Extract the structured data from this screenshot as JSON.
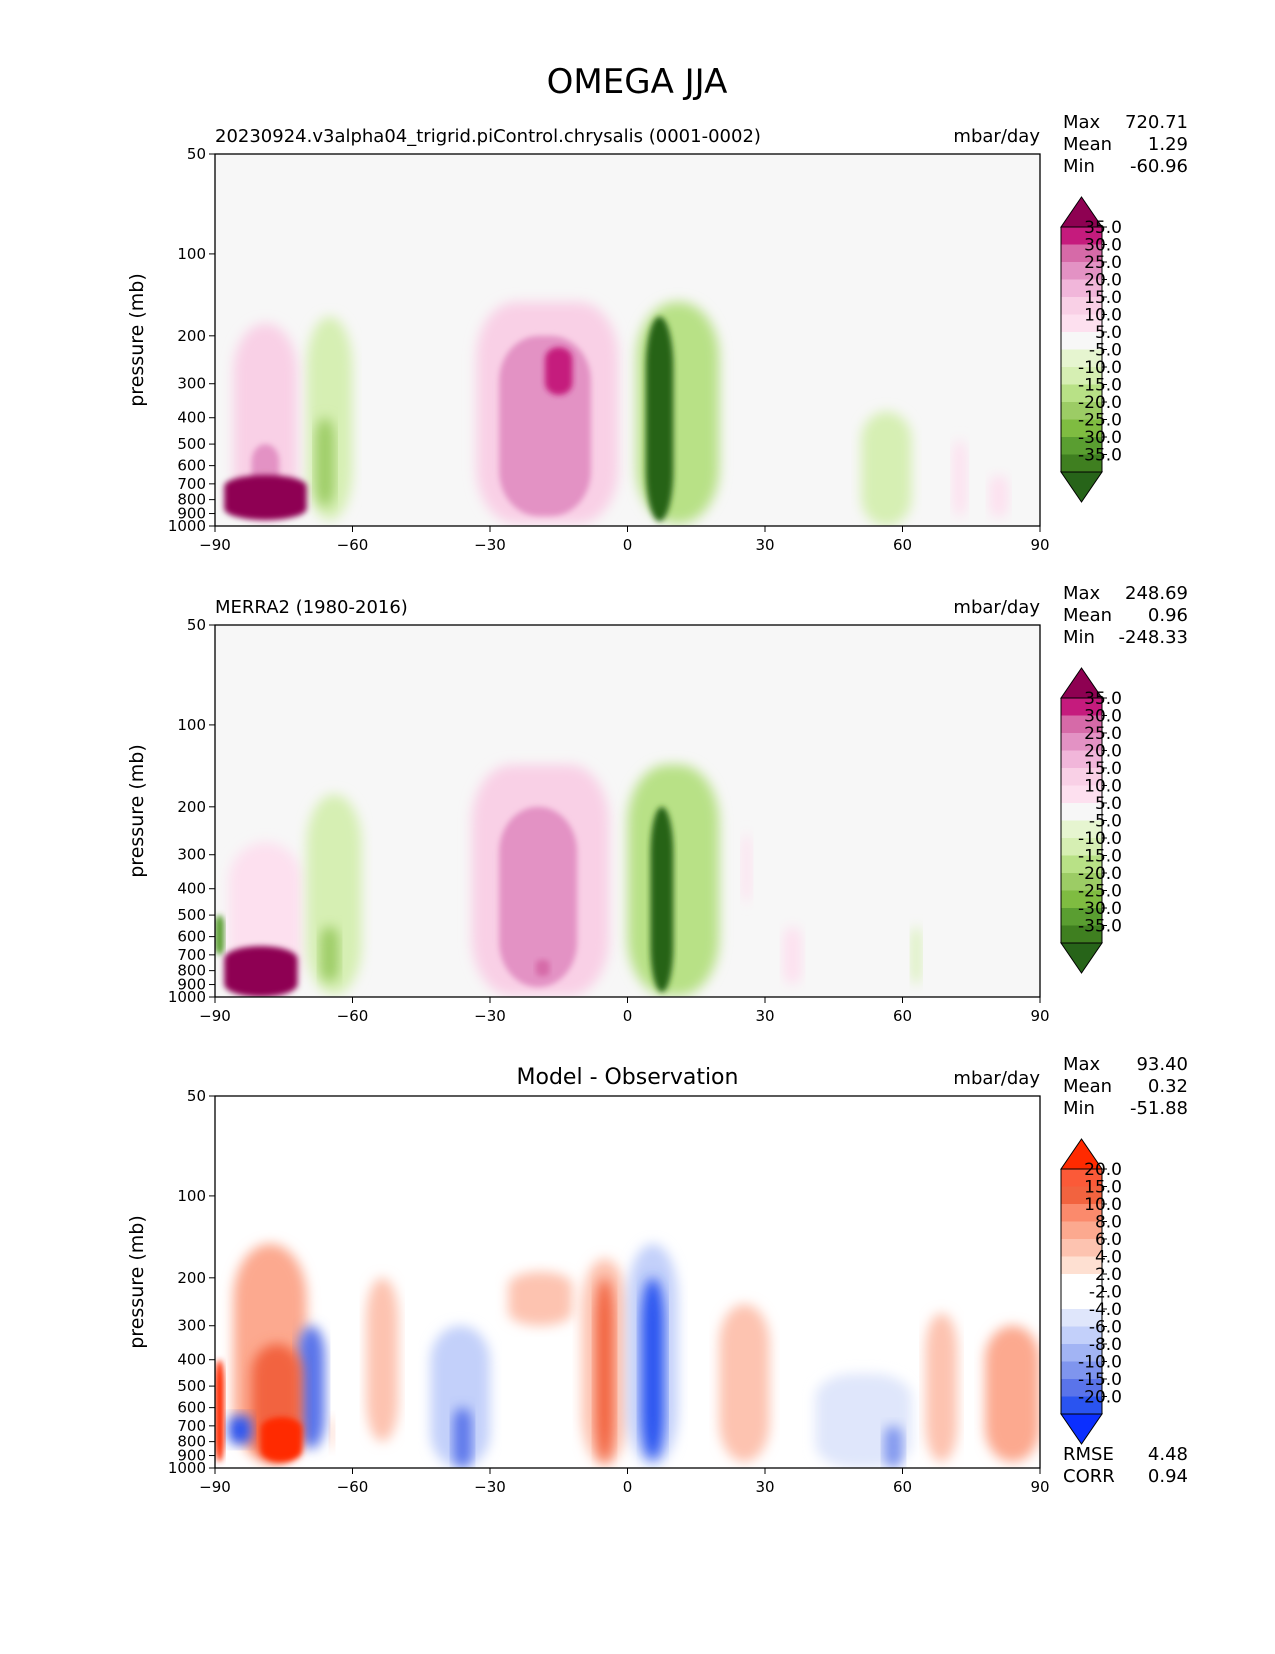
{
  "figure_title": "OMEGA JJA",
  "x_ticks": [
    "−90",
    "−60",
    "−30",
    "0",
    "30",
    "60",
    "90"
  ],
  "y_ticks": [
    "50",
    "100",
    "200",
    "300",
    "400",
    "500",
    "600",
    "700",
    "800",
    "900",
    "1000"
  ],
  "ylabel": "pressure (mb)",
  "colors": {
    "pink_scale": [
      "#f7f7f7",
      "#fde0ef",
      "#f9d0e6",
      "#f1b6da",
      "#e392c4",
      "#d66aa8",
      "#c51b7d",
      "#8e0152"
    ],
    "green_scale": [
      "#f7f7f7",
      "#e6f5d0",
      "#d6efb3",
      "#b8e186",
      "#9ccc65",
      "#7fbc41",
      "#5a9e31",
      "#3f7f20",
      "#276419"
    ],
    "diff_pos": [
      "#ffffff",
      "#fee0d2",
      "#fdc3b0",
      "#fca98f",
      "#fb8a6c",
      "#f2633f",
      "#ff2a00"
    ],
    "diff_neg": [
      "#ffffff",
      "#dfe6fb",
      "#c3d0fa",
      "#a2b4f4",
      "#7f95ee",
      "#5a74ea",
      "#2a54f0",
      "#0b2fff"
    ]
  },
  "panels": [
    {
      "id": "model",
      "title_left": "20230924.v3alpha04_trigrid.piControl.chrysalis (0001-0002)",
      "title_center": "",
      "units": "mbar/day",
      "stats": [
        {
          "label": "Max",
          "value": "720.71"
        },
        {
          "label": "Mean",
          "value": "1.29"
        },
        {
          "label": "Min",
          "value": "-60.96"
        }
      ],
      "colorbar_ticks": [
        "35.0",
        "30.0",
        "25.0",
        "20.0",
        "15.0",
        "10.0",
        "5.0",
        "-5.0",
        "-10.0",
        "-15.0",
        "-20.0",
        "-25.0",
        "-30.0",
        "-35.0"
      ],
      "extra_stats": []
    },
    {
      "id": "obs",
      "title_left": "MERRA2 (1980-2016)",
      "title_center": "",
      "units": "mbar/day",
      "stats": [
        {
          "label": "Max",
          "value": "248.69"
        },
        {
          "label": "Mean",
          "value": "0.96"
        },
        {
          "label": "Min",
          "value": "-248.33"
        }
      ],
      "colorbar_ticks": [
        "35.0",
        "30.0",
        "25.0",
        "20.0",
        "15.0",
        "10.0",
        "5.0",
        "-5.0",
        "-10.0",
        "-15.0",
        "-20.0",
        "-25.0",
        "-30.0",
        "-35.0"
      ],
      "extra_stats": []
    },
    {
      "id": "diff",
      "title_left": "",
      "title_center": "Model - Observation",
      "units": "mbar/day",
      "stats": [
        {
          "label": "Max",
          "value": "93.40"
        },
        {
          "label": "Mean",
          "value": "0.32"
        },
        {
          "label": "Min",
          "value": "-51.88"
        }
      ],
      "colorbar_ticks": [
        "20.0",
        "15.0",
        "10.0",
        "8.0",
        "6.0",
        "4.0",
        "2.0",
        "-2.0",
        "-4.0",
        "-6.0",
        "-8.0",
        "-10.0",
        "-15.0",
        "-20.0"
      ],
      "extra_stats": [
        {
          "label": "RMSE",
          "value": "4.48"
        },
        {
          "label": "CORR",
          "value": "0.94"
        }
      ]
    }
  ],
  "chart_data": [
    {
      "type": "heatmap",
      "title": "20230924.v3alpha04_trigrid.piControl.chrysalis (0001-0002)",
      "xlabel": "",
      "ylabel": "pressure (mb)",
      "xlim": [
        -90,
        90
      ],
      "ylim": [
        1000,
        50
      ],
      "units": "mbar/day",
      "features": [
        {
          "lat_range": [
            -88,
            -70
          ],
          "p_range": [
            650,
            950
          ],
          "value": 40
        },
        {
          "lat_range": [
            -86,
            -72
          ],
          "p_range": [
            180,
            950
          ],
          "value": 10
        },
        {
          "lat_range": [
            -82,
            -76
          ],
          "p_range": [
            500,
            900
          ],
          "value": 20
        },
        {
          "lat_range": [
            -70,
            -60
          ],
          "p_range": [
            170,
            950
          ],
          "value": -8
        },
        {
          "lat_range": [
            -68,
            -64
          ],
          "p_range": [
            400,
            850
          ],
          "value": -18
        },
        {
          "lat_range": [
            -33,
            -2
          ],
          "p_range": [
            150,
            980
          ],
          "value": 10
        },
        {
          "lat_range": [
            -28,
            -8
          ],
          "p_range": [
            200,
            920
          ],
          "value": 20
        },
        {
          "lat_range": [
            -18,
            -12
          ],
          "p_range": [
            220,
            330
          ],
          "value": 30
        },
        {
          "lat_range": [
            2,
            20
          ],
          "p_range": [
            150,
            980
          ],
          "value": -10
        },
        {
          "lat_range": [
            4,
            10
          ],
          "p_range": [
            170,
            960
          ],
          "value": -35
        },
        {
          "lat_range": [
            51,
            62
          ],
          "p_range": [
            380,
            1000
          ],
          "value": -6
        },
        {
          "lat_range": [
            71,
            74
          ],
          "p_range": [
            480,
            930
          ],
          "value": 6
        },
        {
          "lat_range": [
            79,
            83
          ],
          "p_range": [
            650,
            930
          ],
          "value": 6
        }
      ]
    },
    {
      "type": "heatmap",
      "title": "MERRA2 (1980-2016)",
      "xlabel": "",
      "ylabel": "pressure (mb)",
      "xlim": [
        -90,
        90
      ],
      "ylim": [
        1000,
        50
      ],
      "units": "mbar/day",
      "features": [
        {
          "lat_range": [
            -90,
            -88
          ],
          "p_range": [
            500,
            700
          ],
          "value": -25
        },
        {
          "lat_range": [
            -88,
            -72
          ],
          "p_range": [
            650,
            1000
          ],
          "value": 40
        },
        {
          "lat_range": [
            -87,
            -71
          ],
          "p_range": [
            270,
            1000
          ],
          "value": 8
        },
        {
          "lat_range": [
            -70,
            -58
          ],
          "p_range": [
            180,
            980
          ],
          "value": -8
        },
        {
          "lat_range": [
            -67,
            -63
          ],
          "p_range": [
            550,
            880
          ],
          "value": -18
        },
        {
          "lat_range": [
            -34,
            -4
          ],
          "p_range": [
            140,
            990
          ],
          "value": 10
        },
        {
          "lat_range": [
            -28,
            -11
          ],
          "p_range": [
            200,
            920
          ],
          "value": 20
        },
        {
          "lat_range": [
            -20,
            -17
          ],
          "p_range": [
            730,
            840
          ],
          "value": 28
        },
        {
          "lat_range": [
            0,
            20
          ],
          "p_range": [
            140,
            990
          ],
          "value": -10
        },
        {
          "lat_range": [
            5,
            10
          ],
          "p_range": [
            200,
            960
          ],
          "value": -35
        },
        {
          "lat_range": [
            25,
            27
          ],
          "p_range": [
            250,
            450
          ],
          "value": 6
        },
        {
          "lat_range": [
            34,
            38
          ],
          "p_range": [
            550,
            900
          ],
          "value": 6
        },
        {
          "lat_range": [
            62,
            64
          ],
          "p_range": [
            550,
            900
          ],
          "value": -6
        }
      ]
    },
    {
      "type": "heatmap",
      "title": "Model - Observation",
      "xlabel": "",
      "ylabel": "pressure (mb)",
      "xlim": [
        -90,
        90
      ],
      "ylim": [
        1000,
        50
      ],
      "units": "mbar/day",
      "rmse": 4.48,
      "corr": 0.94,
      "features": [
        {
          "lat_range": [
            -90,
            -88
          ],
          "p_range": [
            400,
            950
          ],
          "value": 25
        },
        {
          "lat_range": [
            -86,
            -70
          ],
          "p_range": [
            150,
            950
          ],
          "value": 6
        },
        {
          "lat_range": [
            -82,
            -71
          ],
          "p_range": [
            350,
            950
          ],
          "value": 12
        },
        {
          "lat_range": [
            -80,
            -71
          ],
          "p_range": [
            650,
            950
          ],
          "value": 25
        },
        {
          "lat_range": [
            -87,
            -82
          ],
          "p_range": [
            640,
            820
          ],
          "value": -15
        },
        {
          "lat_range": [
            -72,
            -66
          ],
          "p_range": [
            300,
            850
          ],
          "value": -10
        },
        {
          "lat_range": [
            -65,
            -64
          ],
          "p_range": [
            650,
            850
          ],
          "value": 4
        },
        {
          "lat_range": [
            -57,
            -50
          ],
          "p_range": [
            200,
            800
          ],
          "value": 4
        },
        {
          "lat_range": [
            -43,
            -30
          ],
          "p_range": [
            300,
            1000
          ],
          "value": -4
        },
        {
          "lat_range": [
            -38,
            -34
          ],
          "p_range": [
            600,
            1000
          ],
          "value": -10
        },
        {
          "lat_range": [
            -26,
            -12
          ],
          "p_range": [
            190,
            300
          ],
          "value": 4
        },
        {
          "lat_range": [
            -10,
            0
          ],
          "p_range": [
            170,
            980
          ],
          "value": 4
        },
        {
          "lat_range": [
            -7,
            -3
          ],
          "p_range": [
            200,
            950
          ],
          "value": 10
        },
        {
          "lat_range": [
            0,
            11
          ],
          "p_range": [
            150,
            980
          ],
          "value": -5
        },
        {
          "lat_range": [
            3,
            8
          ],
          "p_range": [
            200,
            930
          ],
          "value": -15
        },
        {
          "lat_range": [
            20,
            31
          ],
          "p_range": [
            250,
            950
          ],
          "value": 4
        },
        {
          "lat_range": [
            41,
            62
          ],
          "p_range": [
            450,
            1000
          ],
          "value": -3
        },
        {
          "lat_range": [
            56,
            60
          ],
          "p_range": [
            700,
            1000
          ],
          "value": -8
        },
        {
          "lat_range": [
            65,
            72
          ],
          "p_range": [
            270,
            950
          ],
          "value": 4
        },
        {
          "lat_range": [
            78,
            90
          ],
          "p_range": [
            300,
            950
          ],
          "value": 6
        }
      ]
    }
  ]
}
